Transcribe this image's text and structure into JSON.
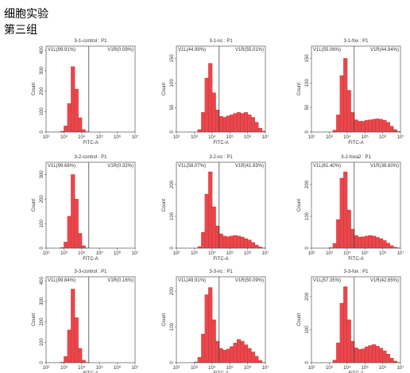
{
  "header": {
    "title": "细胞实验",
    "subtitle": "第三组"
  },
  "chart_data": [
    {
      "type": "histogram",
      "title": "3-1-control : P1",
      "gate_labels": [
        "V1L(99.91%)",
        "V1R(0.09%)"
      ],
      "x_label": "FITC-A",
      "y_label": "Count",
      "color": "#e8474c",
      "gate_x": 25119,
      "log_x": true,
      "bins": [
        100,
        158,
        251,
        398,
        631,
        1000,
        1585,
        2512,
        3981,
        6310,
        10000,
        15849,
        25119,
        39811,
        63096,
        100000,
        158489,
        251189,
        398107,
        630957,
        1000000,
        1584893,
        2511886,
        3981072,
        6309573,
        10000000
      ],
      "counts": [
        0,
        0,
        0,
        0,
        4,
        30,
        140,
        320,
        210,
        70,
        12,
        2,
        0,
        0,
        0,
        0,
        0,
        0,
        0,
        0,
        0,
        0,
        0,
        0,
        0
      ],
      "xlim": [
        100,
        10000000
      ],
      "xticks": [
        {
          "value": 100,
          "label": "10²"
        },
        {
          "value": 1000,
          "label": "10³"
        },
        {
          "value": 10000,
          "label": "10⁴"
        },
        {
          "value": 100000,
          "label": "10⁵"
        },
        {
          "value": 1000000,
          "label": "10⁶"
        },
        {
          "value": 10000000,
          "label": "10⁷"
        }
      ],
      "ylim": [
        0,
        420
      ],
      "yticks": [
        0,
        100,
        200,
        300,
        400
      ]
    },
    {
      "type": "histogram",
      "title": "3-1-nc : P1",
      "gate_labels": [
        "V1L(44.99%)",
        "V1R(55.01%)"
      ],
      "x_label": "FITC-A",
      "y_label": "Count",
      "color": "#e8474c",
      "gate_x": 25119,
      "log_x": true,
      "bins": [
        100,
        158,
        251,
        398,
        631,
        1000,
        1585,
        2512,
        3981,
        6310,
        10000,
        15849,
        25119,
        39811,
        63096,
        100000,
        158489,
        251189,
        398107,
        630957,
        1000000,
        1584893,
        2511886,
        3981072,
        6309573,
        10000000
      ],
      "counts": [
        0,
        0,
        0,
        0,
        0,
        0,
        5,
        40,
        110,
        140,
        80,
        45,
        32,
        30,
        33,
        35,
        38,
        40,
        38,
        40,
        35,
        30,
        20,
        8,
        2
      ],
      "xlim": [
        100,
        10000000
      ],
      "xticks": [
        {
          "value": 100,
          "label": "10²"
        },
        {
          "value": 1000,
          "label": "10³"
        },
        {
          "value": 10000,
          "label": "10⁴"
        },
        {
          "value": 100000,
          "label": "10⁵"
        },
        {
          "value": 1000000,
          "label": "10⁶"
        },
        {
          "value": 10000000,
          "label": "10⁷"
        }
      ],
      "ylim": [
        0,
        175
      ],
      "yticks": [
        0,
        50,
        100,
        150
      ]
    },
    {
      "type": "histogram",
      "title": "3-1-fox : P1",
      "gate_labels": [
        "V1L(55.06%)",
        "V1R(44.94%)"
      ],
      "x_label": "FITC-A",
      "y_label": "Count",
      "color": "#e8474c",
      "gate_x": 25119,
      "log_x": true,
      "bins": [
        100,
        158,
        251,
        398,
        631,
        1000,
        1585,
        2512,
        3981,
        6310,
        10000,
        15849,
        25119,
        39811,
        63096,
        100000,
        158489,
        251189,
        398107,
        630957,
        1000000,
        1584893,
        2511886,
        3981072,
        6309573,
        10000000
      ],
      "counts": [
        0,
        0,
        0,
        0,
        0,
        0,
        4,
        35,
        115,
        150,
        85,
        40,
        25,
        22,
        22,
        24,
        25,
        26,
        27,
        26,
        24,
        20,
        12,
        5,
        1
      ],
      "xlim": [
        100,
        10000000
      ],
      "xticks": [
        {
          "value": 100,
          "label": "10²"
        },
        {
          "value": 1000,
          "label": "10³"
        },
        {
          "value": 10000,
          "label": "10⁴"
        },
        {
          "value": 100000,
          "label": "10⁵"
        },
        {
          "value": 1000000,
          "label": "10⁶"
        },
        {
          "value": 10000000,
          "label": "10⁷"
        }
      ],
      "ylim": [
        0,
        175
      ],
      "yticks": [
        0,
        50,
        100,
        150
      ]
    },
    {
      "type": "histogram",
      "title": "3-2-control : P1",
      "gate_labels": [
        "V1L(99.68%)",
        "V1R(0.32%)"
      ],
      "x_label": "FITC-A",
      "y_label": "Count",
      "color": "#e8474c",
      "gate_x": 25119,
      "log_x": true,
      "bins": [
        100,
        158,
        251,
        398,
        631,
        1000,
        1585,
        2512,
        3981,
        6310,
        10000,
        15849,
        25119,
        39811,
        63096,
        100000,
        158489,
        251189,
        398107,
        630957,
        1000000,
        1584893,
        2511886,
        3981072,
        6309573,
        10000000
      ],
      "counts": [
        0,
        0,
        0,
        0,
        3,
        25,
        130,
        300,
        200,
        60,
        10,
        1,
        0,
        0,
        0,
        0,
        0,
        0,
        0,
        0,
        0,
        0,
        0,
        0,
        0
      ],
      "xlim": [
        100,
        10000000
      ],
      "xticks": [
        {
          "value": 100,
          "label": "10²"
        },
        {
          "value": 1000,
          "label": "10³"
        },
        {
          "value": 10000,
          "label": "10⁴"
        },
        {
          "value": 100000,
          "label": "10⁵"
        },
        {
          "value": 1000000,
          "label": "10⁶"
        },
        {
          "value": 10000000,
          "label": "10⁷"
        }
      ],
      "ylim": [
        0,
        350
      ],
      "yticks": [
        0,
        100,
        200,
        300
      ]
    },
    {
      "type": "histogram",
      "title": "3-2-nc : P1",
      "gate_labels": [
        "V1L(58.07%)",
        "V1R(41.93%)"
      ],
      "x_label": "FITC-A",
      "y_label": "Count",
      "color": "#e8474c",
      "gate_x": 25119,
      "log_x": true,
      "bins": [
        100,
        158,
        251,
        398,
        631,
        1000,
        1585,
        2512,
        3981,
        6310,
        10000,
        15849,
        25119,
        39811,
        63096,
        100000,
        158489,
        251189,
        398107,
        630957,
        1000000,
        1584893,
        2511886,
        3981072,
        6309573,
        10000000
      ],
      "counts": [
        0,
        0,
        0,
        0,
        0,
        0,
        5,
        50,
        170,
        240,
        130,
        70,
        45,
        38,
        36,
        38,
        40,
        38,
        35,
        30,
        26,
        18,
        10,
        4,
        1
      ],
      "xlim": [
        100,
        10000000
      ],
      "xticks": [
        {
          "value": 100,
          "label": "10²"
        },
        {
          "value": 1000,
          "label": "10³"
        },
        {
          "value": 10000,
          "label": "10⁴"
        },
        {
          "value": 100000,
          "label": "10⁵"
        },
        {
          "value": 1000000,
          "label": "10⁶"
        },
        {
          "value": 10000000,
          "label": "10⁷"
        }
      ],
      "ylim": [
        0,
        270
      ],
      "yticks": [
        0,
        100,
        200
      ]
    },
    {
      "type": "histogram",
      "title": "3-2-foxa2 : P1",
      "gate_labels": [
        "V1L(61.40%)",
        "V1R(38.60%)"
      ],
      "x_label": "FITC-A",
      "y_label": "Count",
      "color": "#e8474c",
      "gate_x": 25119,
      "log_x": true,
      "bins": [
        100,
        158,
        251,
        398,
        631,
        1000,
        1585,
        2512,
        3981,
        6310,
        10000,
        15849,
        25119,
        39811,
        63096,
        100000,
        158489,
        251189,
        398107,
        630957,
        1000000,
        1584893,
        2511886,
        3981072,
        6309573,
        10000000
      ],
      "counts": [
        0,
        0,
        0,
        0,
        0,
        2,
        15,
        90,
        220,
        240,
        120,
        60,
        40,
        35,
        36,
        38,
        40,
        38,
        34,
        30,
        24,
        16,
        8,
        3,
        1
      ],
      "xlim": [
        100,
        10000000
      ],
      "xticks": [
        {
          "value": 100,
          "label": "10²"
        },
        {
          "value": 1000,
          "label": "10³"
        },
        {
          "value": 10000,
          "label": "10⁴"
        },
        {
          "value": 100000,
          "label": "10⁵"
        },
        {
          "value": 1000000,
          "label": "10⁶"
        },
        {
          "value": 10000000,
          "label": "10⁷"
        }
      ],
      "ylim": [
        0,
        270
      ],
      "yticks": [
        0,
        100,
        200
      ]
    },
    {
      "type": "histogram",
      "title": "3-3-control : P1",
      "gate_labels": [
        "V1L(99.84%)",
        "V1R(0.16%)"
      ],
      "x_label": "FITC-A",
      "y_label": "Count",
      "color": "#e8474c",
      "gate_x": 25119,
      "log_x": true,
      "bins": [
        100,
        158,
        251,
        398,
        631,
        1000,
        1585,
        2512,
        3981,
        6310,
        10000,
        15849,
        25119,
        39811,
        63096,
        100000,
        158489,
        251189,
        398107,
        630957,
        1000000,
        1584893,
        2511886,
        3981072,
        6309573,
        10000000
      ],
      "counts": [
        0,
        0,
        0,
        0,
        3,
        30,
        160,
        360,
        220,
        70,
        12,
        2,
        0,
        0,
        0,
        0,
        0,
        0,
        0,
        0,
        0,
        0,
        0,
        0,
        0
      ],
      "xlim": [
        100,
        10000000
      ],
      "xticks": [
        {
          "value": 100,
          "label": "10²"
        },
        {
          "value": 1000,
          "label": "10³"
        },
        {
          "value": 10000,
          "label": "10⁴"
        },
        {
          "value": 100000,
          "label": "10⁵"
        },
        {
          "value": 1000000,
          "label": "10⁶"
        },
        {
          "value": 10000000,
          "label": "10⁷"
        }
      ],
      "ylim": [
        0,
        420
      ],
      "yticks": [
        0,
        100,
        200,
        300,
        400
      ]
    },
    {
      "type": "histogram",
      "title": "3-3-nc : P1",
      "gate_labels": [
        "V1L(49.91%)",
        "V1R(50.09%)"
      ],
      "x_label": "FITC-A",
      "y_label": "Count",
      "color": "#e8474c",
      "gate_x": 25119,
      "log_x": true,
      "bins": [
        100,
        158,
        251,
        398,
        631,
        1000,
        1585,
        2512,
        3981,
        6310,
        10000,
        15849,
        25119,
        39811,
        63096,
        100000,
        158489,
        251189,
        398107,
        630957,
        1000000,
        1584893,
        2511886,
        3981072,
        6309573,
        10000000
      ],
      "counts": [
        0,
        0,
        0,
        0,
        0,
        2,
        15,
        80,
        190,
        210,
        120,
        60,
        40,
        35,
        38,
        45,
        55,
        65,
        60,
        50,
        40,
        30,
        18,
        6,
        1
      ],
      "xlim": [
        100,
        10000000
      ],
      "xticks": [
        {
          "value": 100,
          "label": "10²"
        },
        {
          "value": 1000,
          "label": "10³"
        },
        {
          "value": 10000,
          "label": "10⁴"
        },
        {
          "value": 100000,
          "label": "10⁵"
        },
        {
          "value": 1000000,
          "label": "10⁶"
        },
        {
          "value": 10000000,
          "label": "10⁷"
        }
      ],
      "ylim": [
        0,
        240
      ],
      "yticks": [
        0,
        100,
        200
      ]
    },
    {
      "type": "histogram",
      "title": "3-3-fox : P1",
      "gate_labels": [
        "V1L(57.35%)",
        "V1R(42.65%)"
      ],
      "x_label": "FITC-A",
      "y_label": "Count",
      "color": "#e8474c",
      "gate_x": 25119,
      "log_x": true,
      "bins": [
        100,
        158,
        251,
        398,
        631,
        1000,
        1585,
        2512,
        3981,
        6310,
        10000,
        15849,
        25119,
        39811,
        63096,
        100000,
        158489,
        251189,
        398107,
        630957,
        1000000,
        1584893,
        2511886,
        3981072,
        6309573,
        10000000
      ],
      "counts": [
        0,
        0,
        0,
        0,
        0,
        0,
        8,
        60,
        180,
        230,
        130,
        65,
        45,
        40,
        42,
        48,
        52,
        55,
        50,
        44,
        36,
        26,
        14,
        5,
        1
      ],
      "xlim": [
        100,
        10000000
      ],
      "xticks": [
        {
          "value": 100,
          "label": "10²"
        },
        {
          "value": 1000,
          "label": "10³"
        },
        {
          "value": 10000,
          "label": "10⁴"
        },
        {
          "value": 100000,
          "label": "10⁵"
        },
        {
          "value": 1000000,
          "label": "10⁶"
        },
        {
          "value": 10000000,
          "label": "10⁷"
        }
      ],
      "ylim": [
        0,
        260
      ],
      "yticks": [
        0,
        100,
        200
      ]
    }
  ]
}
